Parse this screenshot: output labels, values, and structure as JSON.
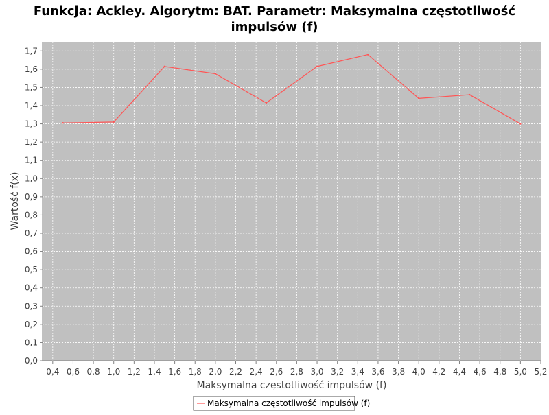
{
  "chart_data": {
    "type": "line",
    "title_lines": [
      "Funkcja: Ackley. Algorytm: BAT. Parametr: Maksymalna częstotliwość",
      "impulsów (f)"
    ],
    "xlabel": "Maksymalna częstotliwość impulsów (f)",
    "ylabel": "Wartość f(x)",
    "xlim": [
      0.3,
      5.2
    ],
    "ylim": [
      0.0,
      1.75
    ],
    "x_ticks": [
      0.4,
      0.6,
      0.8,
      1.0,
      1.2,
      1.4,
      1.6,
      1.8,
      2.0,
      2.2,
      2.4,
      2.6,
      2.8,
      3.0,
      3.2,
      3.4,
      3.6,
      3.8,
      4.0,
      4.2,
      4.4,
      4.6,
      4.8,
      5.0,
      5.2
    ],
    "x_tick_labels": [
      "0,4",
      "0,6",
      "0,8",
      "1,0",
      "1,2",
      "1,4",
      "1,6",
      "1,8",
      "2,0",
      "2,2",
      "2,4",
      "2,6",
      "2,8",
      "3,0",
      "3,2",
      "3,4",
      "3,6",
      "3,8",
      "4,0",
      "4,2",
      "4,4",
      "4,6",
      "4,8",
      "5,0",
      "5,2"
    ],
    "y_ticks": [
      0.0,
      0.1,
      0.2,
      0.3,
      0.4,
      0.5,
      0.6,
      0.7,
      0.8,
      0.9,
      1.0,
      1.1,
      1.2,
      1.3,
      1.4,
      1.5,
      1.6,
      1.7
    ],
    "y_tick_labels": [
      "0,0",
      "0,1",
      "0,2",
      "0,3",
      "0,4",
      "0,5",
      "0,6",
      "0,7",
      "0,8",
      "0,9",
      "1,0",
      "1,1",
      "1,2",
      "1,3",
      "1,4",
      "1,5",
      "1,6",
      "1,7"
    ],
    "grid": true,
    "legend_placement": "bottom-center",
    "plot_background": "#c0c0c0",
    "series": [
      {
        "name": "Maksymalna częstotliwość impulsów (f)",
        "color": "#ff5555",
        "x": [
          0.5,
          1.0,
          1.5,
          2.0,
          2.5,
          3.0,
          3.5,
          4.0,
          4.5,
          5.0
        ],
        "y": [
          1.305,
          1.31,
          1.615,
          1.575,
          1.415,
          1.615,
          1.68,
          1.44,
          1.46,
          1.3
        ]
      }
    ]
  }
}
